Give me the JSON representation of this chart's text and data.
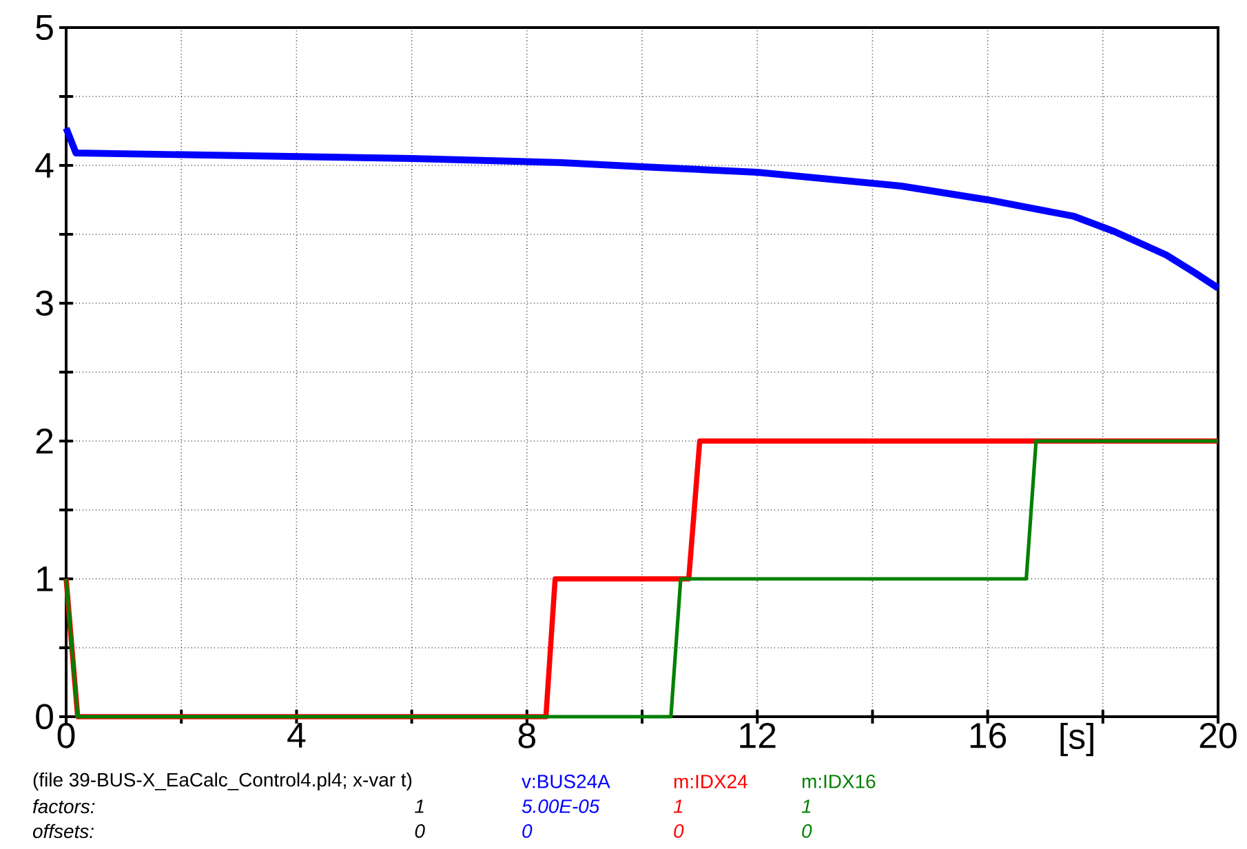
{
  "chart_data": {
    "type": "line",
    "xlabel": "[s]",
    "xlim": [
      0,
      20
    ],
    "ylim": [
      0,
      5
    ],
    "xticks": [
      0,
      {
        "value": 2,
        "label": null
      },
      4,
      {
        "value": 6,
        "label": null
      },
      8,
      {
        "value": 10,
        "label": null
      },
      12,
      {
        "value": 14,
        "label": null
      },
      16,
      {
        "value": 18,
        "label": null
      },
      20
    ],
    "yticks": [
      0,
      {
        "value": 0.5,
        "label": null
      },
      1,
      {
        "value": 1.5,
        "label": null
      },
      2,
      {
        "value": 2.5,
        "label": null
      },
      3,
      {
        "value": 3.5,
        "label": null
      },
      4,
      {
        "value": 4.5,
        "label": null
      },
      5
    ],
    "grid": true,
    "legend": "bottom",
    "marker": "none",
    "line_style": "solid",
    "series": [
      {
        "name": "v:BUS24A",
        "color": "#0000ff",
        "x": [
          0,
          0.17,
          6.0,
          8.6,
          10.0,
          12.0,
          14.5,
          16.0,
          17.5,
          18.2,
          19.1,
          19.6,
          20
        ],
        "values": [
          4.27,
          4.09,
          4.05,
          4.02,
          3.99,
          3.95,
          3.85,
          3.75,
          3.63,
          3.52,
          3.35,
          3.22,
          3.11
        ]
      },
      {
        "name": "m:IDX24",
        "color": "#ff0000",
        "x": [
          0,
          0.2,
          8.33,
          8.49,
          10.81,
          11.0,
          20
        ],
        "values": [
          1,
          0,
          0,
          1,
          1,
          2,
          2
        ]
      },
      {
        "name": "m:IDX16",
        "color": "#008000",
        "x": [
          0,
          0.2,
          10.5,
          10.67,
          16.67,
          16.84,
          20
        ],
        "values": [
          1,
          0,
          0,
          1,
          1,
          2,
          2
        ]
      }
    ],
    "annotations": [
      "(file 39-BUS-X_EaCalc_Control4.pl4; x-var t)",
      "factors:",
      "1",
      "5.00E-05",
      "1",
      "1",
      "offsets:",
      "0",
      "0",
      "0",
      "0"
    ]
  }
}
